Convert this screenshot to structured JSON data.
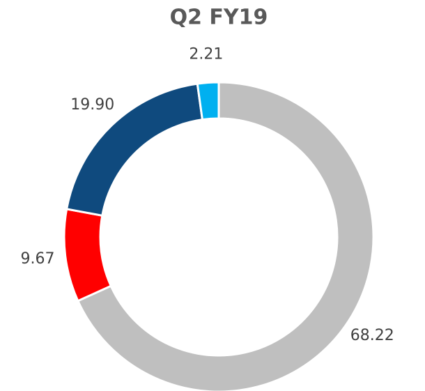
{
  "chart_data": {
    "type": "pie",
    "title": "Q2 FY19",
    "categories": [
      null,
      null,
      null,
      null
    ],
    "values": [
      68.22,
      9.67,
      19.9,
      2.21
    ],
    "value_labels": [
      "68.22",
      "9.67",
      "19.90",
      "2.21"
    ],
    "colors": [
      "#bfbfbf",
      "#ff0000",
      "#0f4a7e",
      "#00b0f0"
    ]
  }
}
